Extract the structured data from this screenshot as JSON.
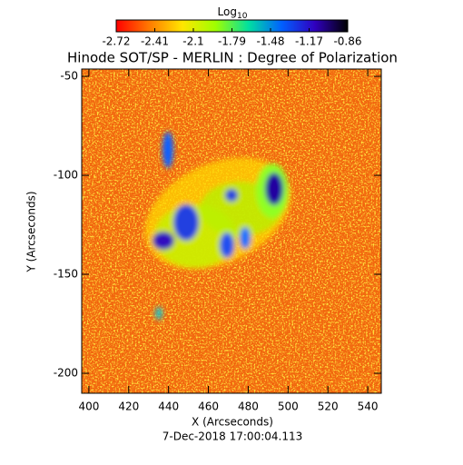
{
  "chart_data": {
    "type": "heatmap",
    "title": "Hinode SOT/SP - MERLIN : Degree of Polarization",
    "x_label": "X (Arcseconds)",
    "y_label": "Y (Arcseconds)",
    "date": "7-Dec-2018 17:00:04.113",
    "xlim": [
      396.4,
      546.8
    ],
    "xticks": [
      400,
      420,
      440,
      460,
      480,
      500,
      520,
      540
    ],
    "ylim": [
      -210.1,
      -46.3
    ],
    "yticks": [
      -50,
      -100,
      -150,
      -200
    ],
    "colorbar": {
      "label": "Log",
      "label_subscript": "10",
      "lim": [
        -2.72,
        -0.86
      ],
      "ticks": [
        -2.72,
        -2.41,
        -2.1,
        -1.79,
        -1.48,
        -1.17,
        -0.86
      ],
      "colors": [
        "#ff0000",
        "#ff7a00",
        "#ffe600",
        "#a0ff00",
        "#00e0a0",
        "#0060ff",
        "#3000c0",
        "#000000"
      ]
    }
  }
}
